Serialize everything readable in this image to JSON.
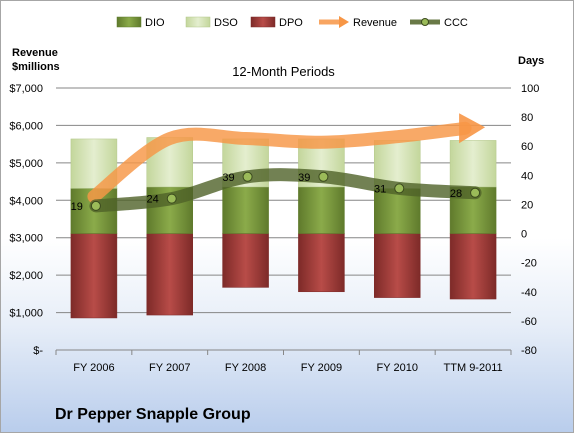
{
  "chart_data": {
    "type": "bar",
    "title": "12-Month Periods",
    "company": "Dr Pepper Snapple Group",
    "y_left_label": [
      "Revenue",
      "$millions"
    ],
    "y_right_label": "Days",
    "y_left_ticks": [
      "$7,000",
      "$6,000",
      "$5,000",
      "$4,000",
      "$3,000",
      "$2,000",
      "$1,000",
      "$-"
    ],
    "y_right_ticks": [
      "100",
      "80",
      "60",
      "40",
      "20",
      "0",
      "-20",
      "-40",
      "-60",
      "-80"
    ],
    "y_left_range": [
      0,
      7000
    ],
    "y_right_range": [
      -80,
      100
    ],
    "categories": [
      "FY 2006",
      "FY 2007",
      "FY 2008",
      "FY 2009",
      "FY 2010",
      "TTM 9-2011"
    ],
    "legend": [
      "DIO",
      "DSO",
      "DPO",
      "Revenue",
      "CCC"
    ],
    "legend_position": "top",
    "grid": true,
    "series": [
      {
        "name": "DIO",
        "axis": "right",
        "values": [
          31,
          32,
          32,
          32,
          31,
          32
        ]
      },
      {
        "name": "DSO",
        "axis": "right",
        "values": [
          34,
          34,
          33,
          33,
          33,
          32
        ]
      },
      {
        "name": "DPO",
        "axis": "right",
        "values": [
          -58,
          -56,
          -37,
          -40,
          -44,
          -45
        ]
      },
      {
        "name": "Revenue",
        "axis": "left",
        "values": [
          4100,
          5650,
          5650,
          5550,
          5700,
          5950
        ]
      },
      {
        "name": "CCC",
        "axis": "right",
        "values": [
          19,
          24,
          39,
          39,
          31,
          28
        ]
      }
    ],
    "colors": {
      "DIO": "#77933c",
      "DSO": "#d7e4bd",
      "DPO": "#953735",
      "Revenue": "#f79646",
      "CCC": "#4f6228",
      "grid": "#868686"
    }
  }
}
